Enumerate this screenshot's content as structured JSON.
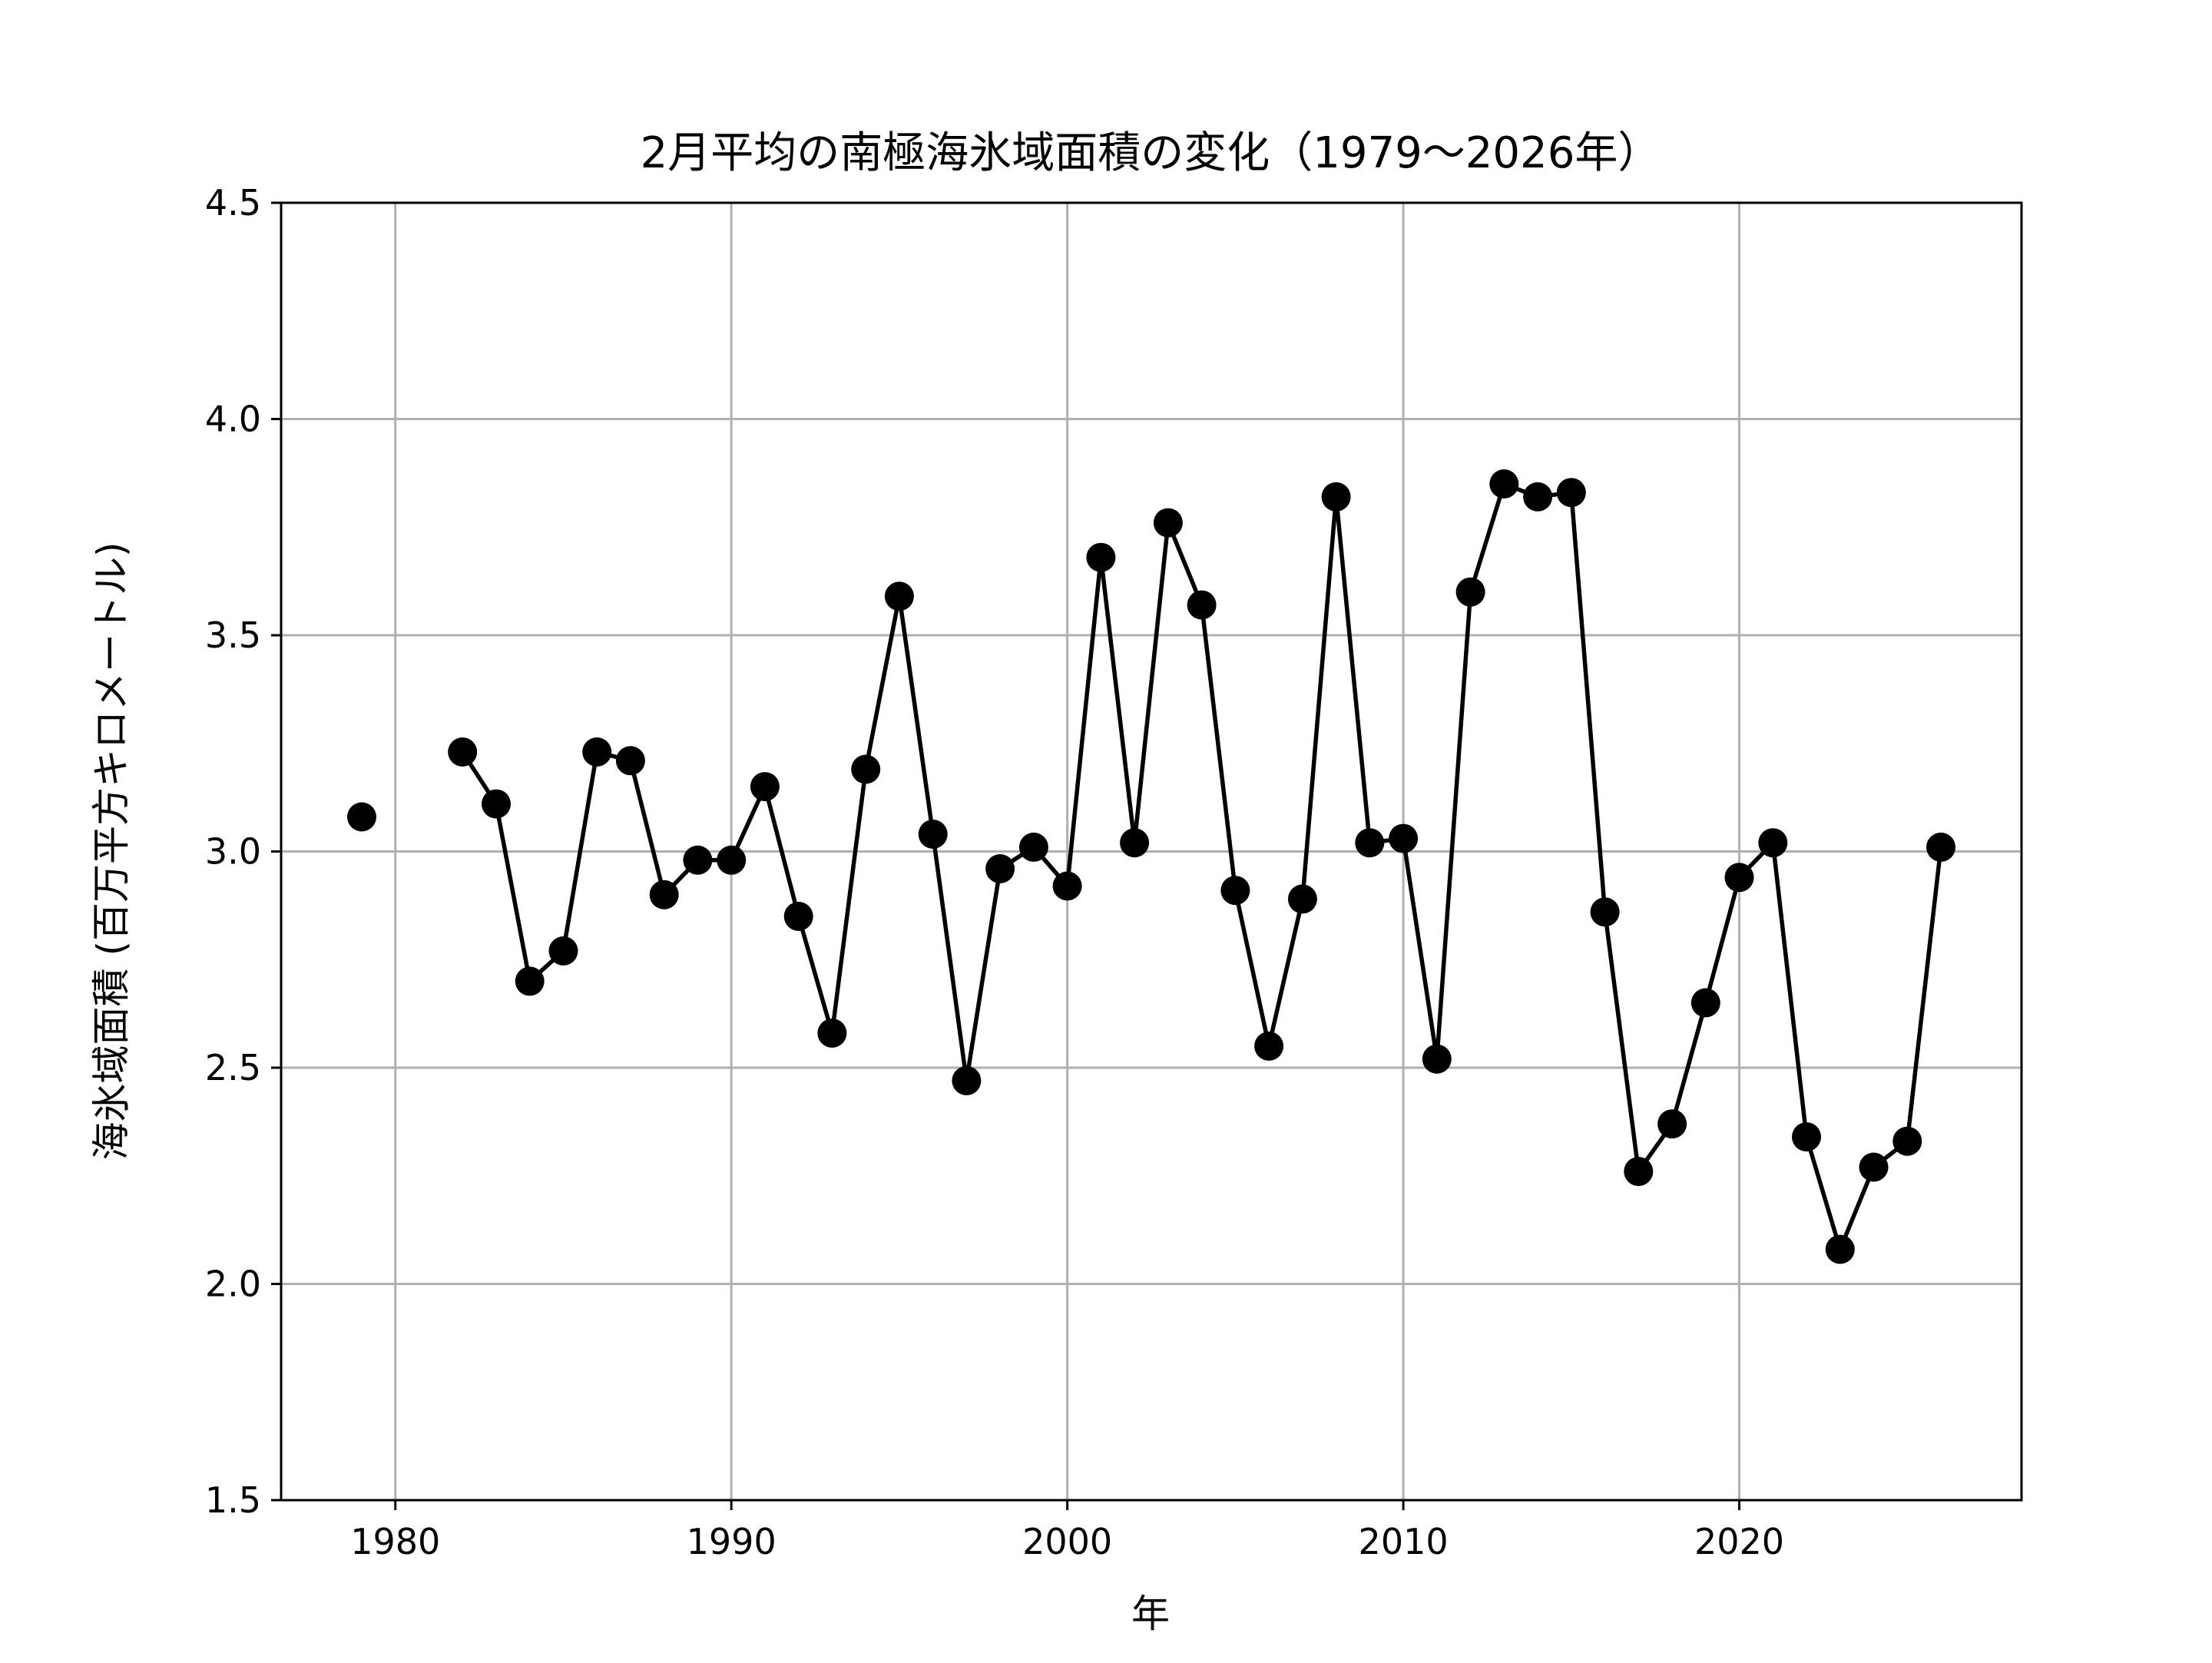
{
  "chart_data": {
    "type": "line",
    "title": "2月平均の南極海氷域面積の変化（1979〜2026年）",
    "xlabel": "年",
    "ylabel": "海氷域面積 (百万平方キロメートル)",
    "xlim": [
      1976.6,
      2028.4
    ],
    "ylim": [
      1.5,
      4.5
    ],
    "xticks": [
      "1980",
      "1990",
      "2000",
      "2010",
      "2020"
    ],
    "yticks": [
      "1.5",
      "2.0",
      "2.5",
      "3.0",
      "3.5",
      "4.0",
      "4.5"
    ],
    "grid": true,
    "colors": {
      "line": "#000000",
      "marker": "#000000",
      "grid": "#b0b0b0"
    },
    "series": [
      {
        "x": [
          1979,
          1980,
          1981,
          1982,
          1983,
          1984,
          1985,
          1986,
          1987,
          1988,
          1989,
          1990,
          1991,
          1992,
          1993,
          1994,
          1995,
          1996,
          1997,
          1998,
          1999,
          2000,
          2001,
          2002,
          2003,
          2004,
          2005,
          2006,
          2007,
          2008,
          2009,
          2010,
          2011,
          2012,
          2013,
          2014,
          2015,
          2016,
          2017,
          2018,
          2019,
          2020,
          2021,
          2022,
          2023,
          2024,
          2025,
          2026
        ],
        "values": [
          3.08,
          null,
          null,
          3.23,
          3.11,
          2.7,
          2.77,
          3.23,
          3.21,
          2.9,
          2.98,
          2.98,
          3.15,
          2.85,
          2.58,
          3.19,
          3.59,
          3.04,
          2.47,
          2.96,
          3.01,
          2.92,
          3.68,
          3.02,
          3.76,
          3.57,
          2.91,
          2.55,
          2.89,
          3.82,
          3.02,
          3.03,
          2.52,
          3.6,
          3.85,
          3.82,
          3.83,
          2.86,
          2.26,
          2.37,
          2.65,
          2.94,
          3.02,
          2.34,
          2.08,
          2.27,
          2.33,
          3.01
        ]
      }
    ]
  }
}
